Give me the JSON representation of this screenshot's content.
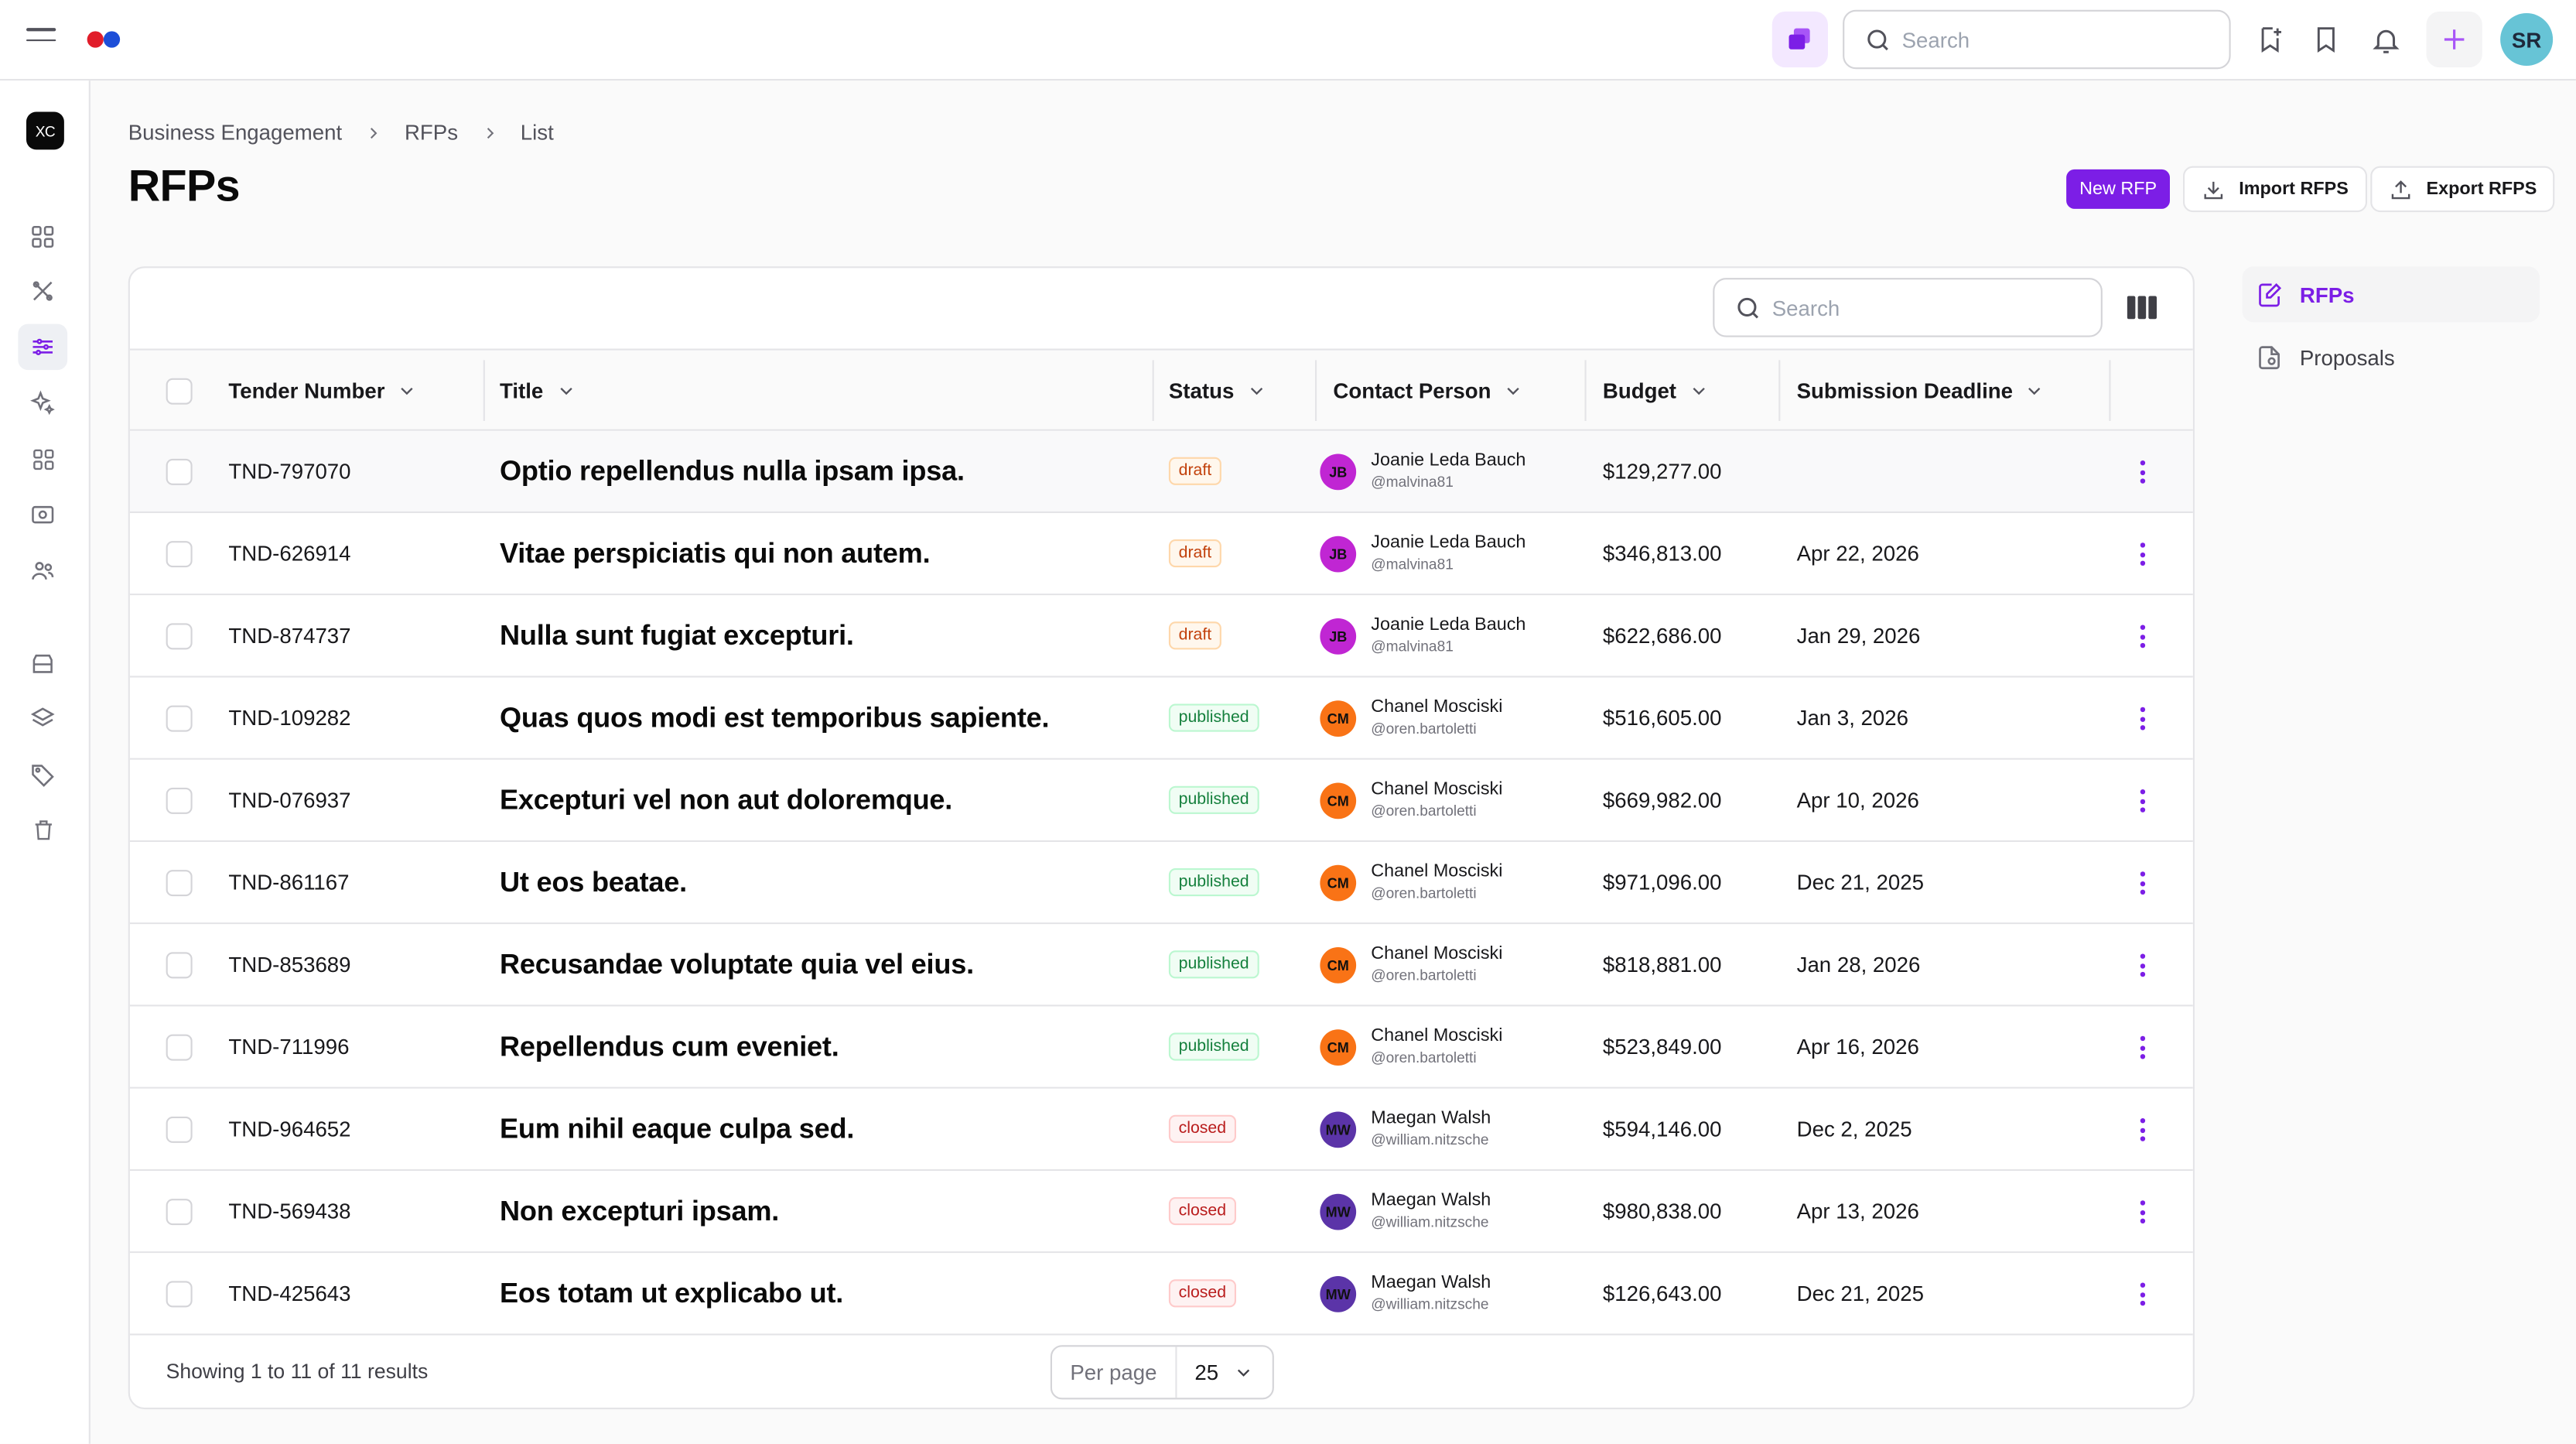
{
  "topbar": {
    "search_placeholder": "Search",
    "user_initials": "SR",
    "icons": [
      "menu-icon",
      "brand-logo",
      "chat-icon",
      "search-icon",
      "bookmark-add-icon",
      "bookmark-icon",
      "bell-icon",
      "plus-icon"
    ]
  },
  "sidebar": {
    "workspace": "XC",
    "items": [
      "dashboard",
      "tools",
      "engagement",
      "ai",
      "apps",
      "billing",
      "users",
      "inbox",
      "layers",
      "tags",
      "trash"
    ]
  },
  "breadcrumb": [
    "Business Engagement",
    "RFPs",
    "List"
  ],
  "page_title": "RFPs",
  "actions": {
    "new": "New RFP",
    "import": "Import RFPS",
    "export": "Export RFPS"
  },
  "table": {
    "search_placeholder": "Search",
    "columns": [
      "Tender Number",
      "Title",
      "Status",
      "Contact Person",
      "Budget",
      "Submission Deadline"
    ],
    "rows": [
      {
        "tender": "TND-797070",
        "title": "Optio repellendus nulla ipsam ipsa.",
        "status": "draft",
        "initials": "JB",
        "name": "Joanie Leda Bauch",
        "handle": "@malvina81",
        "budget": "$129,277.00",
        "deadline": ""
      },
      {
        "tender": "TND-626914",
        "title": "Vitae perspiciatis qui non autem.",
        "status": "draft",
        "initials": "JB",
        "name": "Joanie Leda Bauch",
        "handle": "@malvina81",
        "budget": "$346,813.00",
        "deadline": "Apr 22, 2026"
      },
      {
        "tender": "TND-874737",
        "title": "Nulla sunt fugiat excepturi.",
        "status": "draft",
        "initials": "JB",
        "name": "Joanie Leda Bauch",
        "handle": "@malvina81",
        "budget": "$622,686.00",
        "deadline": "Jan 29, 2026"
      },
      {
        "tender": "TND-109282",
        "title": "Quas quos modi est temporibus sapiente.",
        "status": "published",
        "initials": "CM",
        "name": "Chanel Mosciski",
        "handle": "@oren.bartoletti",
        "budget": "$516,605.00",
        "deadline": "Jan 3, 2026"
      },
      {
        "tender": "TND-076937",
        "title": "Excepturi vel non aut doloremque.",
        "status": "published",
        "initials": "CM",
        "name": "Chanel Mosciski",
        "handle": "@oren.bartoletti",
        "budget": "$669,982.00",
        "deadline": "Apr 10, 2026"
      },
      {
        "tender": "TND-861167",
        "title": "Ut eos beatae.",
        "status": "published",
        "initials": "CM",
        "name": "Chanel Mosciski",
        "handle": "@oren.bartoletti",
        "budget": "$971,096.00",
        "deadline": "Dec 21, 2025"
      },
      {
        "tender": "TND-853689",
        "title": "Recusandae voluptate quia vel eius.",
        "status": "published",
        "initials": "CM",
        "name": "Chanel Mosciski",
        "handle": "@oren.bartoletti",
        "budget": "$818,881.00",
        "deadline": "Jan 28, 2026"
      },
      {
        "tender": "TND-711996",
        "title": "Repellendus cum eveniet.",
        "status": "published",
        "initials": "CM",
        "name": "Chanel Mosciski",
        "handle": "@oren.bartoletti",
        "budget": "$523,849.00",
        "deadline": "Apr 16, 2026"
      },
      {
        "tender": "TND-964652",
        "title": "Eum nihil eaque culpa sed.",
        "status": "closed",
        "initials": "MW",
        "name": "Maegan Walsh",
        "handle": "@william.nitzsche",
        "budget": "$594,146.00",
        "deadline": "Dec 2, 2025"
      },
      {
        "tender": "TND-569438",
        "title": "Non excepturi ipsam.",
        "status": "closed",
        "initials": "MW",
        "name": "Maegan Walsh",
        "handle": "@william.nitzsche",
        "budget": "$980,838.00",
        "deadline": "Apr 13, 2026"
      },
      {
        "tender": "TND-425643",
        "title": "Eos totam ut explicabo ut.",
        "status": "closed",
        "initials": "MW",
        "name": "Maegan Walsh",
        "handle": "@william.nitzsche",
        "budget": "$126,643.00",
        "deadline": "Dec 21, 2025"
      }
    ],
    "footer_text": "Showing 1 to 11 of 11 results",
    "per_page_label": "Per page",
    "per_page_value": "25"
  },
  "side_nav": [
    {
      "label": "RFPs",
      "active": true
    },
    {
      "label": "Proposals",
      "active": false
    }
  ],
  "colors": {
    "accent": "#7c1ee6",
    "avatar_JB": "#c026d3",
    "avatar_CM": "#f97316",
    "avatar_MW": "#5b34a8",
    "user_avatar": "#67c4d6"
  }
}
